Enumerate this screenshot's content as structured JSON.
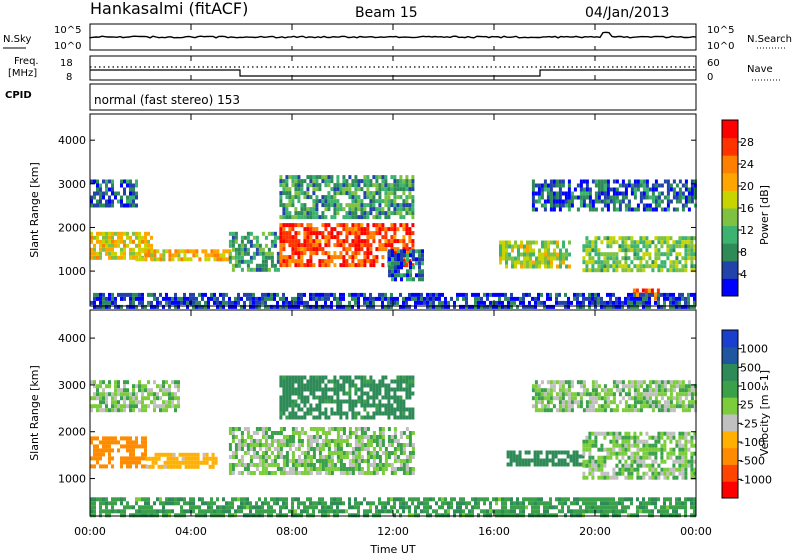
{
  "header": {
    "station": "Hankasalmi (fitACF)",
    "beam": "Beam 15",
    "date": "04/Jan/2013"
  },
  "top_panels": {
    "nsky_label": "N.Sky",
    "nsearch_label": "N.Search",
    "noise_ticks": [
      "10^5",
      "10^0"
    ],
    "freq_label_1": "Freq.",
    "freq_label_2": "[MHz]",
    "freq_ticks": [
      "18",
      "8"
    ],
    "nave_label": "Nave",
    "nave_ticks": [
      "60",
      "0"
    ],
    "cpid_label": "CPID",
    "cpid_text": "normal (fast stereo) 153"
  },
  "colors": {
    "power_scale": [
      "#0000ff",
      "#2244aa",
      "#2e8b57",
      "#3cb371",
      "#7fc241",
      "#c8d400",
      "#ffa500",
      "#ff7f00",
      "#ff3300",
      "#ff0000"
    ],
    "velocity_scale": [
      "#ff0000",
      "#ff4500",
      "#ff8c00",
      "#ffb000",
      "#c0c0c0",
      "#7ccd3c",
      "#3aa04a",
      "#2e8b57",
      "#1e56a0",
      "#1a3fcc"
    ]
  },
  "chart_data": [
    {
      "type": "heatmap",
      "name": "power",
      "ylabel": "Slant Range [km]",
      "yticks": [
        1000,
        2000,
        3000,
        4000
      ],
      "ylim": [
        200,
        4600
      ],
      "xlim": [
        0,
        24
      ],
      "colorbar_label": "Power [dB]",
      "colorbar_ticks": [
        "28",
        "24",
        "20",
        "16",
        "12",
        "8",
        "4"
      ],
      "colorbar_range": [
        0,
        32
      ],
      "regions": [
        {
          "x0": 0,
          "x1": 2.4,
          "y0": 1300,
          "y1": 1900,
          "v": 18
        },
        {
          "x0": 0,
          "x1": 1.8,
          "y0": 2500,
          "y1": 3100,
          "v": 6
        },
        {
          "x0": 1.8,
          "x1": 5.5,
          "y0": 1250,
          "y1": 1500,
          "v": 20
        },
        {
          "x0": 5.5,
          "x1": 7.5,
          "y0": 1000,
          "y1": 1900,
          "v": 10
        },
        {
          "x0": 7.5,
          "x1": 12.8,
          "y0": 1100,
          "y1": 2100,
          "v": 27
        },
        {
          "x0": 7.5,
          "x1": 12.8,
          "y0": 2200,
          "y1": 3200,
          "v": 10
        },
        {
          "x0": 11.8,
          "x1": 13.2,
          "y0": 800,
          "y1": 1500,
          "v": 6
        },
        {
          "x0": 16.2,
          "x1": 19.0,
          "y0": 1100,
          "y1": 1700,
          "v": 16
        },
        {
          "x0": 19.5,
          "x1": 24,
          "y0": 1000,
          "y1": 1800,
          "v": 14
        },
        {
          "x0": 17.5,
          "x1": 24,
          "y0": 2400,
          "y1": 3100,
          "v": 6
        },
        {
          "x0": 21.5,
          "x1": 22.5,
          "y0": 400,
          "y1": 600,
          "v": 26
        },
        {
          "x0": 0,
          "x1": 24,
          "y0": 200,
          "y1": 500,
          "v": 4
        }
      ]
    },
    {
      "type": "heatmap",
      "name": "velocity",
      "ylabel": "Slant Range [km]",
      "yticks": [
        1000,
        2000,
        3000,
        4000
      ],
      "ylim": [
        200,
        4600
      ],
      "xlim": [
        0,
        24
      ],
      "xlabel": "Time UT",
      "xticks": [
        "00:00",
        "04:00",
        "08:00",
        "12:00",
        "16:00",
        "20:00",
        "00:00"
      ],
      "colorbar_label": "Velocity [m s-1]",
      "colorbar_ticks": [
        "1000",
        "500",
        "100",
        "25",
        "-25",
        "-100",
        "-500",
        "-1000"
      ],
      "regions": [
        {
          "x0": 0,
          "x1": 2.2,
          "y0": 1300,
          "y1": 1900,
          "v": -600
        },
        {
          "x0": 2.2,
          "x1": 5.0,
          "y0": 1250,
          "y1": 1550,
          "v": -150
        },
        {
          "x0": 0,
          "x1": 3.5,
          "y0": 2500,
          "y1": 3100,
          "v": 0
        },
        {
          "x0": 5.5,
          "x1": 12.8,
          "y0": 1100,
          "y1": 2100,
          "v": 0
        },
        {
          "x0": 7.5,
          "x1": 12.8,
          "y0": 2300,
          "y1": 3200,
          "v": 150
        },
        {
          "x0": 16.5,
          "x1": 19.5,
          "y0": 1300,
          "y1": 1600,
          "v": 200
        },
        {
          "x0": 19.5,
          "x1": 24,
          "y0": 1000,
          "y1": 2000,
          "v": 0
        },
        {
          "x0": 17.5,
          "x1": 24,
          "y0": 2500,
          "y1": 3100,
          "v": 0
        },
        {
          "x0": 0,
          "x1": 24,
          "y0": 200,
          "y1": 600,
          "v": 80
        }
      ]
    }
  ]
}
